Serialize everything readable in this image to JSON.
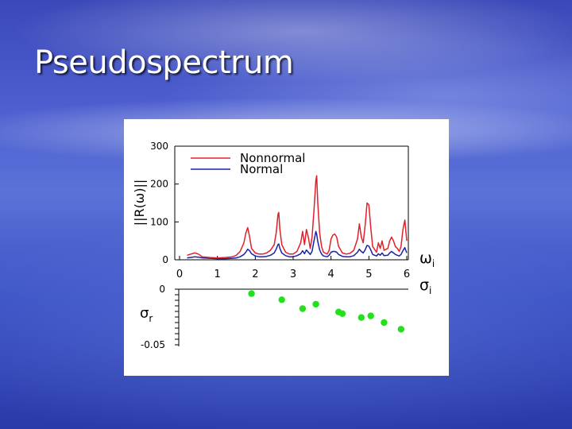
{
  "slide": {
    "title": "Pseudospectrum"
  },
  "chart_data": [
    {
      "type": "line",
      "ylabel": "||R(ω)||",
      "xlabel": "ω",
      "xlabel_sub": "i",
      "xlim": [
        0,
        6
      ],
      "ylim": [
        0,
        300
      ],
      "x_ticks": [
        "0",
        "1",
        "2",
        "3",
        "4",
        "5",
        "6"
      ],
      "y_ticks": [
        "0",
        "100",
        "200",
        "300"
      ],
      "grid": false,
      "legend_position": "top-left",
      "colors": {
        "Nonnormal": "#e0202a",
        "Normal": "#1a22a8"
      },
      "series": [
        {
          "name": "Nonnormal",
          "x": [
            0.2,
            0.3,
            0.4,
            0.5,
            0.6,
            0.8,
            1.0,
            1.2,
            1.4,
            1.5,
            1.6,
            1.7,
            1.75,
            1.8,
            1.85,
            1.9,
            2.0,
            2.1,
            2.2,
            2.3,
            2.4,
            2.5,
            2.55,
            2.6,
            2.62,
            2.65,
            2.7,
            2.8,
            2.9,
            3.0,
            3.1,
            3.2,
            3.25,
            3.3,
            3.35,
            3.4,
            3.45,
            3.5,
            3.55,
            3.6,
            3.62,
            3.65,
            3.7,
            3.75,
            3.8,
            3.9,
            3.95,
            4.0,
            4.05,
            4.1,
            4.15,
            4.2,
            4.3,
            4.4,
            4.5,
            4.6,
            4.7,
            4.75,
            4.8,
            4.85,
            4.9,
            4.95,
            5.0,
            5.05,
            5.1,
            5.2,
            5.25,
            5.3,
            5.35,
            5.4,
            5.5,
            5.55,
            5.6,
            5.65,
            5.7,
            5.75,
            5.8,
            5.85,
            5.9,
            5.95,
            6.0
          ],
          "y": [
            12,
            15,
            18,
            15,
            8,
            6,
            5,
            6,
            8,
            12,
            22,
            45,
            70,
            85,
            60,
            30,
            18,
            15,
            15,
            18,
            25,
            40,
            70,
            120,
            125,
            80,
            40,
            20,
            15,
            15,
            22,
            45,
            75,
            40,
            80,
            60,
            30,
            60,
            130,
            210,
            222,
            150,
            70,
            35,
            20,
            15,
            25,
            55,
            65,
            68,
            60,
            35,
            18,
            15,
            17,
            25,
            55,
            95,
            60,
            45,
            90,
            150,
            145,
            85,
            35,
            20,
            45,
            30,
            50,
            25,
            30,
            50,
            60,
            50,
            35,
            30,
            22,
            35,
            80,
            105,
            50
          ]
        },
        {
          "name": "Normal",
          "x": [
            0.2,
            0.3,
            0.4,
            0.5,
            0.6,
            0.8,
            1.0,
            1.2,
            1.4,
            1.5,
            1.6,
            1.7,
            1.75,
            1.8,
            1.85,
            1.9,
            2.0,
            2.1,
            2.2,
            2.3,
            2.4,
            2.5,
            2.55,
            2.6,
            2.62,
            2.65,
            2.7,
            2.8,
            2.9,
            3.0,
            3.1,
            3.2,
            3.25,
            3.3,
            3.35,
            3.4,
            3.45,
            3.5,
            3.55,
            3.6,
            3.62,
            3.65,
            3.7,
            3.75,
            3.8,
            3.9,
            3.95,
            4.0,
            4.05,
            4.1,
            4.15,
            4.2,
            4.3,
            4.4,
            4.5,
            4.6,
            4.7,
            4.75,
            4.8,
            4.85,
            4.9,
            4.95,
            5.0,
            5.05,
            5.1,
            5.2,
            5.25,
            5.3,
            5.35,
            5.4,
            5.5,
            5.55,
            5.6,
            5.65,
            5.7,
            5.75,
            5.8,
            5.85,
            5.9,
            5.95,
            6.0
          ],
          "y": [
            5,
            6,
            8,
            7,
            5,
            4,
            3,
            3,
            4,
            5,
            8,
            14,
            20,
            28,
            24,
            16,
            10,
            8,
            8,
            9,
            12,
            18,
            28,
            40,
            42,
            30,
            18,
            11,
            8,
            8,
            11,
            16,
            24,
            16,
            26,
            20,
            14,
            22,
            50,
            75,
            68,
            48,
            26,
            15,
            10,
            8,
            12,
            20,
            22,
            22,
            20,
            14,
            9,
            8,
            8,
            11,
            20,
            28,
            22,
            18,
            26,
            38,
            36,
            26,
            14,
            10,
            16,
            12,
            18,
            11,
            12,
            18,
            22,
            18,
            14,
            12,
            10,
            14,
            24,
            32,
            18
          ]
        }
      ]
    },
    {
      "type": "scatter",
      "ylabel": "σ",
      "ylabel_sub": "r",
      "xlabel": "σ",
      "xlabel_sub": "i",
      "xlim": [
        0,
        6
      ],
      "ylim": [
        -0.05,
        0
      ],
      "y_ticks": [
        "0",
        "-0.05"
      ],
      "grid": false,
      "colors": {
        "points": "#22e01a"
      },
      "series": [
        {
          "x": [
            1.9,
            2.7,
            3.25,
            3.6,
            4.2,
            4.3,
            4.8,
            5.05,
            5.4,
            5.85
          ],
          "y": [
            -0.004,
            -0.0095,
            -0.0175,
            -0.0135,
            -0.0205,
            -0.022,
            -0.0255,
            -0.024,
            -0.03,
            -0.036
          ]
        }
      ]
    }
  ]
}
